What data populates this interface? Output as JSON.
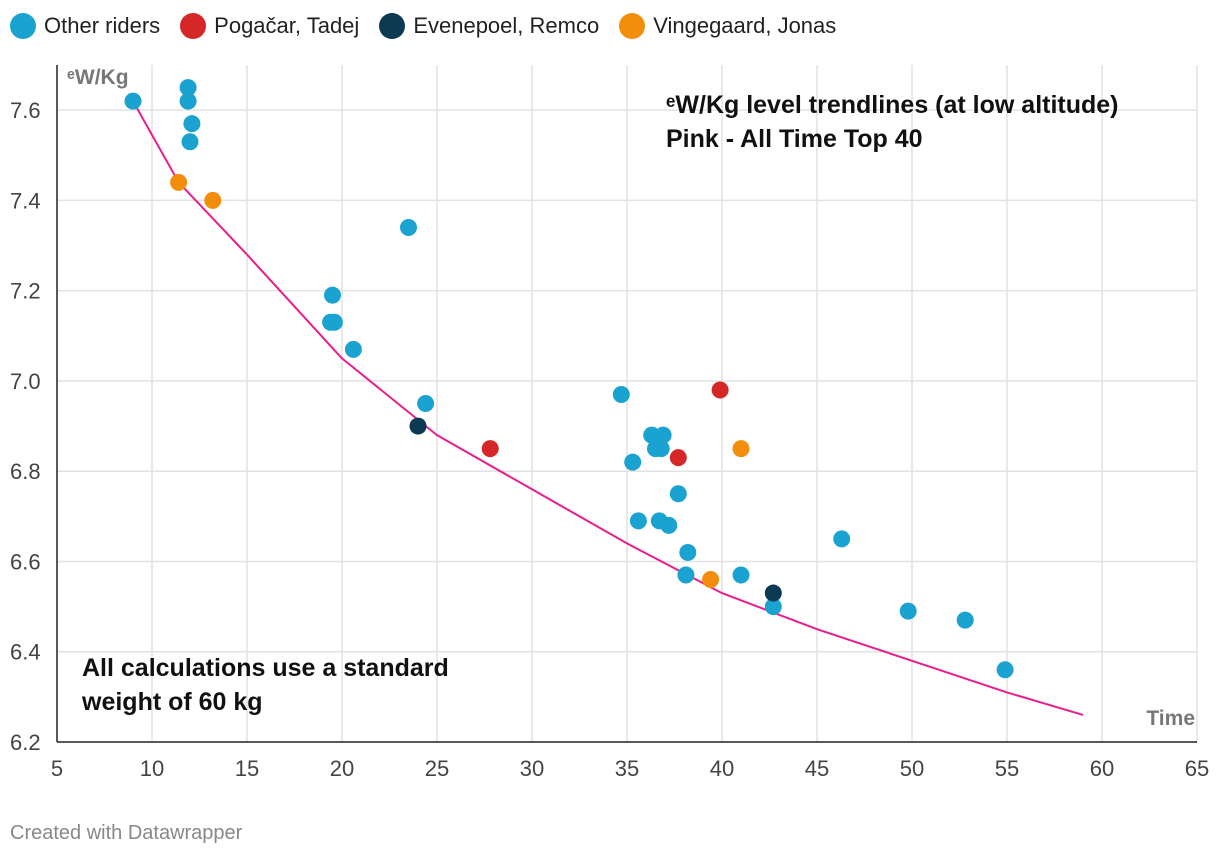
{
  "chart_data": {
    "type": "scatter",
    "title": "",
    "xlabel": "Time",
    "ylabel": "ᵉW/Kg",
    "xlim": [
      5,
      65
    ],
    "ylim": [
      6.2,
      7.7
    ],
    "x_ticks": [
      5,
      10,
      15,
      20,
      25,
      30,
      35,
      40,
      45,
      50,
      55,
      60,
      65
    ],
    "y_ticks": [
      6.2,
      6.4,
      6.6,
      6.8,
      7.0,
      7.2,
      7.4,
      7.6
    ],
    "y_tick_labels": [
      "6.2",
      "6.4",
      "6.6",
      "6.8",
      "7.0",
      "7.2",
      "7.4",
      "7.6"
    ],
    "grid": true,
    "legend_position": "top-left",
    "series": [
      {
        "name": "Other riders",
        "color": "#1aa3d1",
        "points": [
          [
            9,
            7.62
          ],
          [
            11.9,
            7.65
          ],
          [
            11.9,
            7.62
          ],
          [
            12.1,
            7.57
          ],
          [
            12,
            7.53
          ],
          [
            23.5,
            7.34
          ],
          [
            19.5,
            7.19
          ],
          [
            19.4,
            7.13
          ],
          [
            19.6,
            7.13
          ],
          [
            20.6,
            7.07
          ],
          [
            24.4,
            6.95
          ],
          [
            34.7,
            6.97
          ],
          [
            36.3,
            6.88
          ],
          [
            36.9,
            6.88
          ],
          [
            36.5,
            6.85
          ],
          [
            36.8,
            6.85
          ],
          [
            35.3,
            6.82
          ],
          [
            37.7,
            6.75
          ],
          [
            35.6,
            6.69
          ],
          [
            36.7,
            6.69
          ],
          [
            37.2,
            6.68
          ],
          [
            38.2,
            6.62
          ],
          [
            38.1,
            6.57
          ],
          [
            41,
            6.57
          ],
          [
            42.7,
            6.5
          ],
          [
            46.3,
            6.65
          ],
          [
            49.8,
            6.49
          ],
          [
            52.8,
            6.47
          ],
          [
            54.9,
            6.36
          ]
        ]
      },
      {
        "name": "Pogačar, Tadej",
        "color": "#d62728",
        "points": [
          [
            27.8,
            6.85
          ],
          [
            37.7,
            6.83
          ],
          [
            39.9,
            6.98
          ]
        ]
      },
      {
        "name": "Evenepoel, Remco",
        "color": "#0b3a52",
        "points": [
          [
            24,
            6.9
          ],
          [
            42.7,
            6.53
          ]
        ]
      },
      {
        "name": "Vingegaard, Jonas",
        "color": "#f28e0c",
        "points": [
          [
            11.4,
            7.44
          ],
          [
            13.2,
            7.4
          ],
          [
            41,
            6.85
          ],
          [
            39.4,
            6.56
          ]
        ]
      }
    ],
    "trendline": {
      "name": "All Time Top 40",
      "color": "#e91e8c",
      "points": [
        [
          9,
          7.62
        ],
        [
          11.4,
          7.44
        ],
        [
          15,
          7.28
        ],
        [
          20,
          7.05
        ],
        [
          25,
          6.88
        ],
        [
          30,
          6.76
        ],
        [
          35,
          6.64
        ],
        [
          40,
          6.53
        ],
        [
          45,
          6.45
        ],
        [
          50,
          6.38
        ],
        [
          55,
          6.31
        ],
        [
          59,
          6.26
        ]
      ]
    },
    "annotations": {
      "top_line1": "ᵉW/Kg level trendlines (at low altitude)",
      "top_line2": "Pink - All Time Top 40",
      "bottom_line1": "All calculations use a standard",
      "bottom_line2": "weight of 60 kg"
    }
  },
  "credit": "Created with Datawrapper"
}
